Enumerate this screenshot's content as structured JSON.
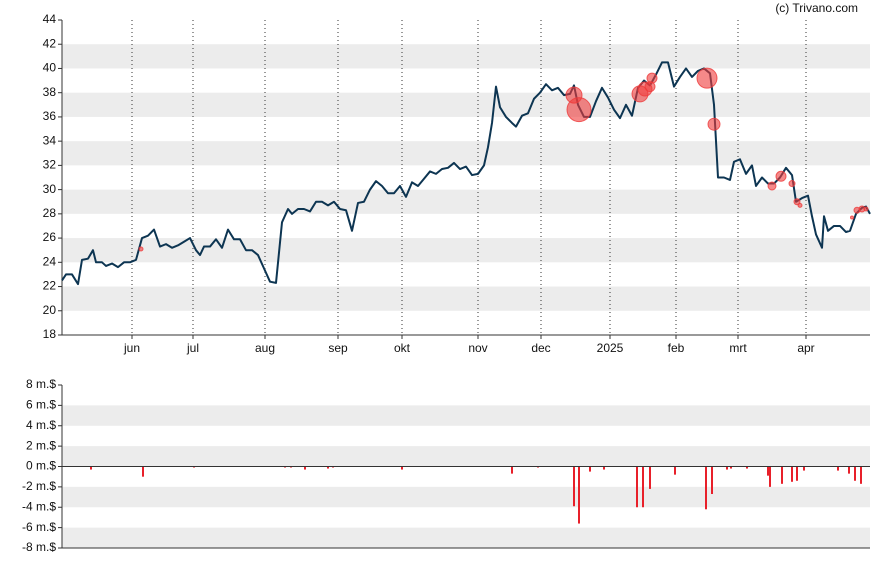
{
  "source": "(c) Trivano.com",
  "chart_data": [
    {
      "type": "line",
      "color": "#0d3552",
      "xlim": [
        0,
        808
      ],
      "xticks": [
        {
          "value": 70,
          "label": "jun"
        },
        {
          "value": 131,
          "label": "jul"
        },
        {
          "value": 203,
          "label": "aug"
        },
        {
          "value": 276,
          "label": "sep"
        },
        {
          "value": 340,
          "label": "okt"
        },
        {
          "value": 416,
          "label": "nov"
        },
        {
          "value": 479,
          "label": "dec"
        },
        {
          "value": 548,
          "label": "2025"
        },
        {
          "value": 614,
          "label": "feb"
        },
        {
          "value": 676,
          "label": "mrt"
        },
        {
          "value": 744,
          "label": "apr"
        }
      ],
      "ylim": [
        18,
        44
      ],
      "yticks": [
        18,
        20,
        22,
        24,
        26,
        28,
        30,
        32,
        34,
        36,
        38,
        40,
        42,
        44
      ],
      "xgrid": true,
      "x": [
        0,
        4,
        10,
        16,
        20,
        26,
        31,
        34,
        40,
        44,
        50,
        56,
        62,
        68,
        74,
        80,
        86,
        92,
        98,
        104,
        110,
        116,
        122,
        128,
        134,
        138,
        142,
        148,
        154,
        160,
        166,
        172,
        178,
        184,
        190,
        196,
        202,
        208,
        214,
        220,
        226,
        230,
        236,
        242,
        248,
        254,
        260,
        266,
        272,
        278,
        284,
        290,
        296,
        302,
        308,
        314,
        320,
        326,
        332,
        338,
        344,
        350,
        356,
        362,
        368,
        374,
        380,
        386,
        392,
        398,
        404,
        410,
        416,
        422,
        426,
        430,
        434,
        438,
        444,
        450,
        454,
        460,
        466,
        472,
        478,
        484,
        490,
        496,
        502,
        508,
        512,
        516,
        522,
        528,
        534,
        540,
        546,
        552,
        558,
        564,
        570,
        576,
        582,
        588,
        594,
        600,
        606,
        612,
        618,
        624,
        630,
        636,
        642,
        648,
        652,
        656,
        662,
        668,
        672,
        678,
        684,
        690,
        694,
        700,
        706,
        712,
        718,
        724,
        730,
        734,
        740,
        746,
        750,
        754,
        760,
        762,
        766,
        772,
        778,
        784,
        788,
        794,
        800,
        804,
        808
      ],
      "values": [
        22.5,
        23,
        23,
        22.2,
        24.2,
        24.3,
        25,
        24,
        24,
        23.7,
        23.9,
        23.6,
        24,
        24,
        24.2,
        26,
        26.2,
        26.7,
        25.3,
        25.5,
        25.2,
        25.4,
        25.7,
        26,
        25,
        24.6,
        25.3,
        25.3,
        25.9,
        25.2,
        26.7,
        25.9,
        25.9,
        25,
        25,
        24.6,
        23.5,
        22.4,
        22.3,
        27.3,
        28.4,
        28,
        28.4,
        28.4,
        28.2,
        29,
        29,
        28.7,
        29,
        28.4,
        28.3,
        26.6,
        28.9,
        29,
        30,
        30.7,
        30.3,
        29.7,
        29.7,
        30.3,
        29.4,
        30.6,
        30.3,
        30.9,
        31.5,
        31.3,
        31.7,
        31.8,
        32.2,
        31.7,
        31.9,
        31.2,
        31.3,
        32,
        33.5,
        35.5,
        38.5,
        36.8,
        36,
        35.5,
        35.2,
        36.1,
        36.3,
        37.5,
        38,
        38.7,
        38.2,
        38.4,
        37.8,
        37.9,
        38.6,
        37,
        36,
        36,
        37.3,
        38.4,
        37.6,
        36.6,
        35.9,
        37,
        36.1,
        38.4,
        39,
        38.6,
        39.5,
        40.5,
        40.5,
        38.5,
        39.3,
        40,
        39.3,
        39.8,
        40,
        39.6,
        37,
        31,
        31,
        30.8,
        32.3,
        32.5,
        31.3,
        32,
        30.3,
        31,
        30.5,
        30.5,
        31,
        31.8,
        31.2,
        29,
        29.3,
        29.5,
        27.8,
        26.3,
        25.2,
        27.8,
        26.6,
        27,
        27,
        26.5,
        26.6,
        28,
        28.5,
        28.6,
        28
      ],
      "bubbles": {
        "color": "#ee3b3b",
        "x": [
          79,
          512,
          517,
          578,
          583,
          588,
          590,
          645,
          652,
          710,
          719,
          730,
          735,
          738,
          790,
          795,
          800,
          804
        ],
        "values": [
          25.1,
          37.8,
          36.6,
          37.9,
          38.3,
          38.5,
          39.2,
          39.2,
          35.4,
          30.3,
          31.1,
          30.5,
          29,
          28.7,
          27.7,
          28.3,
          28.4,
          28.4
        ],
        "sizes": [
          2,
          8,
          12,
          8,
          7,
          5,
          5,
          10,
          6,
          4,
          5,
          3,
          3,
          2,
          1.5,
          3,
          3,
          2
        ]
      }
    },
    {
      "type": "bar",
      "color": "#e8202a",
      "xlim": [
        0,
        808
      ],
      "ylim": [
        -8,
        8
      ],
      "yticks": [
        {
          "value": -8,
          "label": "-8 m.$"
        },
        {
          "value": -6,
          "label": "-6 m.$"
        },
        {
          "value": -4,
          "label": "-4 m.$"
        },
        {
          "value": -2,
          "label": "-2 m.$"
        },
        {
          "value": 0,
          "label": "0 m.$"
        },
        {
          "value": 2,
          "label": "2 m.$"
        },
        {
          "value": 4,
          "label": "4 m.$"
        },
        {
          "value": 6,
          "label": "6 m.$"
        },
        {
          "value": 8,
          "label": "8 m.$"
        }
      ],
      "x": [
        29,
        81,
        132,
        223,
        229,
        243,
        266,
        271,
        340,
        450,
        476,
        512,
        517,
        528,
        542,
        575,
        581,
        588,
        613,
        644,
        650,
        665,
        669,
        685,
        706,
        708,
        720,
        730,
        735,
        742,
        776,
        787,
        793,
        799
      ],
      "values": [
        -0.3,
        -1,
        -0.1,
        -0.1,
        -0.1,
        -0.3,
        -0.2,
        -0.1,
        -0.3,
        -0.7,
        -0.1,
        -3.9,
        -5.6,
        -0.5,
        -0.3,
        -4,
        -4,
        -2.2,
        -0.8,
        -4.2,
        -2.7,
        -0.3,
        -0.2,
        -0.2,
        -0.9,
        -2,
        -1.7,
        -1.5,
        -1.4,
        -0.4,
        -0.4,
        -0.7,
        -1.4,
        -1.7
      ]
    }
  ]
}
